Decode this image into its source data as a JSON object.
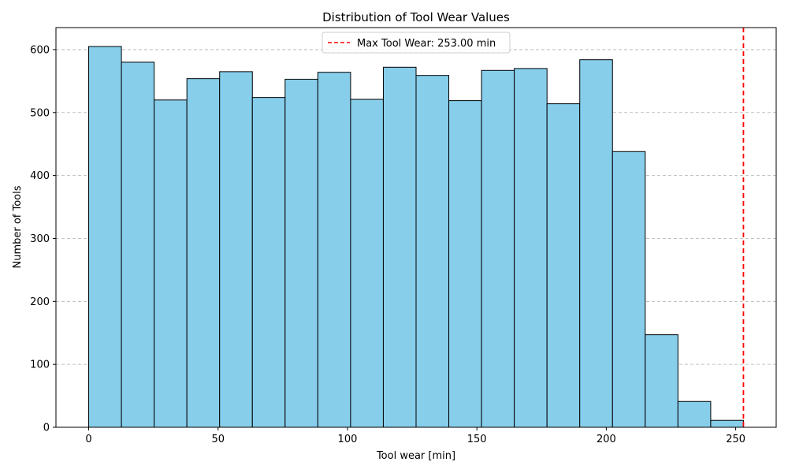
{
  "chart_data": {
    "type": "bar",
    "title": "Distribution of Tool Wear Values",
    "xlabel": "Tool wear [min]",
    "ylabel": "Number of Tools",
    "bin_width": 12.65,
    "bins": [
      {
        "start": 0.0,
        "end": 12.65,
        "count": 605
      },
      {
        "start": 12.65,
        "end": 25.3,
        "count": 580
      },
      {
        "start": 25.3,
        "end": 37.95,
        "count": 520
      },
      {
        "start": 37.95,
        "end": 50.6,
        "count": 554
      },
      {
        "start": 50.6,
        "end": 63.25,
        "count": 565
      },
      {
        "start": 63.25,
        "end": 75.9,
        "count": 524
      },
      {
        "start": 75.9,
        "end": 88.55,
        "count": 553
      },
      {
        "start": 88.55,
        "end": 101.2,
        "count": 564
      },
      {
        "start": 101.2,
        "end": 113.85,
        "count": 521
      },
      {
        "start": 113.85,
        "end": 126.5,
        "count": 572
      },
      {
        "start": 126.5,
        "end": 139.15,
        "count": 559
      },
      {
        "start": 139.15,
        "end": 151.8,
        "count": 519
      },
      {
        "start": 151.8,
        "end": 164.45,
        "count": 567
      },
      {
        "start": 164.45,
        "end": 177.1,
        "count": 570
      },
      {
        "start": 177.1,
        "end": 189.75,
        "count": 514
      },
      {
        "start": 189.75,
        "end": 202.4,
        "count": 584
      },
      {
        "start": 202.4,
        "end": 215.05,
        "count": 438
      },
      {
        "start": 215.05,
        "end": 227.7,
        "count": 147
      },
      {
        "start": 227.7,
        "end": 240.35,
        "count": 41
      },
      {
        "start": 240.35,
        "end": 253.0,
        "count": 11
      }
    ],
    "xlim": [
      -12.65,
      265.65
    ],
    "ylim": [
      0,
      635
    ],
    "xticks": [
      0,
      50,
      100,
      150,
      200,
      250
    ],
    "yticks": [
      0,
      100,
      200,
      300,
      400,
      500,
      600
    ],
    "grid": "y-dashed",
    "bar_color": "#87CEEB",
    "bar_edge_color": "#000000",
    "reference_line": {
      "x": 253.0,
      "label": "Max Tool Wear: 253.00 min",
      "color": "#ff0000",
      "style": "dashed"
    },
    "legend_placement": "top-center"
  }
}
